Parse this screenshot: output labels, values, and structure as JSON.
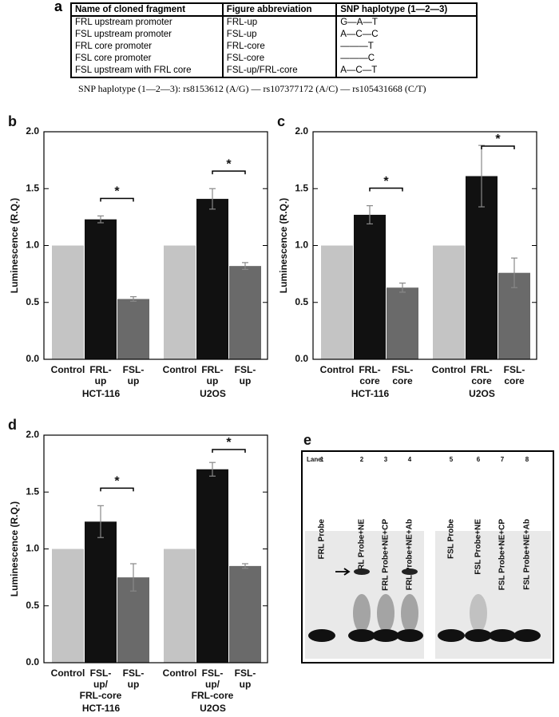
{
  "table": {
    "label": "a",
    "header": [
      "Name of cloned fragment",
      "Figure abbreviation",
      "SNP haplotype (1—2—3)"
    ],
    "rows": [
      [
        "FRL upstream promoter",
        "FRL-up",
        "G—A—T"
      ],
      [
        "FSL upstream promoter",
        "FSL-up",
        "A—C—C"
      ],
      [
        "FRL core promoter",
        "FRL-core",
        "———T"
      ],
      [
        "FSL core promoter",
        "FSL-core",
        "———C"
      ],
      [
        "FSL upstream with FRL core",
        "FSL-up/FRL-core",
        "A—C—T"
      ]
    ],
    "footnote": "SNP haplotype (1—2—3): rs8153612 (A/G) — rs107377172 (A/C) — rs105431668 (C/T)"
  },
  "chart_data": [
    {
      "type": "bar",
      "label": "b",
      "ylabel": "Luminescence (R.Q.)",
      "categories": [
        "Control",
        "FRL-\nup",
        "FSL-\nup",
        "Control",
        "FRL-\nup",
        "FSL-\nup"
      ],
      "groups": [
        "HCT-116",
        "U2OS"
      ],
      "values": [
        1.0,
        1.23,
        0.53,
        1.0,
        1.41,
        0.82
      ],
      "errors": [
        null,
        0.03,
        0.02,
        null,
        0.09,
        0.03
      ],
      "colors": [
        "#c4c4c4",
        "#111111",
        "#6a6a6a"
      ],
      "annotations": [
        "*",
        "*"
      ],
      "ylim": [
        0,
        2
      ],
      "yticks": [
        {
          "value": 0,
          "label": "0.0"
        },
        {
          "value": 0.5,
          "label": "0.5"
        },
        {
          "value": 1,
          "label": "1.0"
        },
        {
          "value": 1.5,
          "label": "1.5"
        },
        {
          "value": 2,
          "label": "2.0"
        }
      ]
    },
    {
      "type": "bar",
      "label": "c",
      "ylabel": "Luminescence (R.Q.)",
      "categories": [
        "Control",
        "FRL-\ncore",
        "FSL-\ncore",
        "Control",
        "FRL-\ncore",
        "FSL-\ncore"
      ],
      "groups": [
        "HCT-116",
        "U2OS"
      ],
      "values": [
        1.0,
        1.27,
        0.63,
        1.0,
        1.61,
        0.76
      ],
      "errors": [
        null,
        0.08,
        0.04,
        null,
        0.27,
        0.13
      ],
      "colors": [
        "#c4c4c4",
        "#111111",
        "#6a6a6a"
      ],
      "annotations": [
        "*",
        "*"
      ],
      "ylim": [
        0,
        2
      ],
      "yticks": [
        {
          "value": 0,
          "label": "0.0"
        },
        {
          "value": 0.5,
          "label": "0.5"
        },
        {
          "value": 1,
          "label": "1.0"
        },
        {
          "value": 1.5,
          "label": "1.5"
        },
        {
          "value": 2,
          "label": "2.0"
        }
      ]
    },
    {
      "type": "bar",
      "label": "d",
      "ylabel": "Luminescence (R.Q.)",
      "categories": [
        "Control",
        "FSL-\nup/\nFRL-core",
        "FSL-\nup",
        "Control",
        "FSL-\nup/\nFRL-core",
        "FSL-\nup"
      ],
      "groups": [
        "HCT-116",
        "U2OS"
      ],
      "values": [
        1.0,
        1.24,
        0.75,
        1.0,
        1.7,
        0.85
      ],
      "errors": [
        null,
        0.14,
        0.12,
        null,
        0.06,
        0.02
      ],
      "colors": [
        "#c4c4c4",
        "#111111",
        "#6a6a6a"
      ],
      "annotations": [
        "*",
        "*"
      ],
      "ylim": [
        0,
        2
      ],
      "yticks": [
        {
          "value": 0,
          "label": "0.0"
        },
        {
          "value": 0.5,
          "label": "0.5"
        },
        {
          "value": 1,
          "label": "1.0"
        },
        {
          "value": 1.5,
          "label": "1.5"
        },
        {
          "value": 2,
          "label": "2.0"
        }
      ]
    }
  ],
  "gel": {
    "label": "e",
    "lane_heading": "Lane:",
    "lanes": [
      {
        "number": "1",
        "name": "FRL Probe"
      },
      {
        "number": "2",
        "name": "FRL Probe+NE"
      },
      {
        "number": "3",
        "name": "FRL Probe+NE+CP"
      },
      {
        "number": "4",
        "name": "FRL Probe+NE+Ab"
      },
      {
        "number": "5",
        "name": "FSL Probe"
      },
      {
        "number": "6",
        "name": "FSL Probe+NE"
      },
      {
        "number": "7",
        "name": "FSL Probe+NE+CP"
      },
      {
        "number": "8",
        "name": "FSL Probe+NE+Ab"
      }
    ]
  }
}
